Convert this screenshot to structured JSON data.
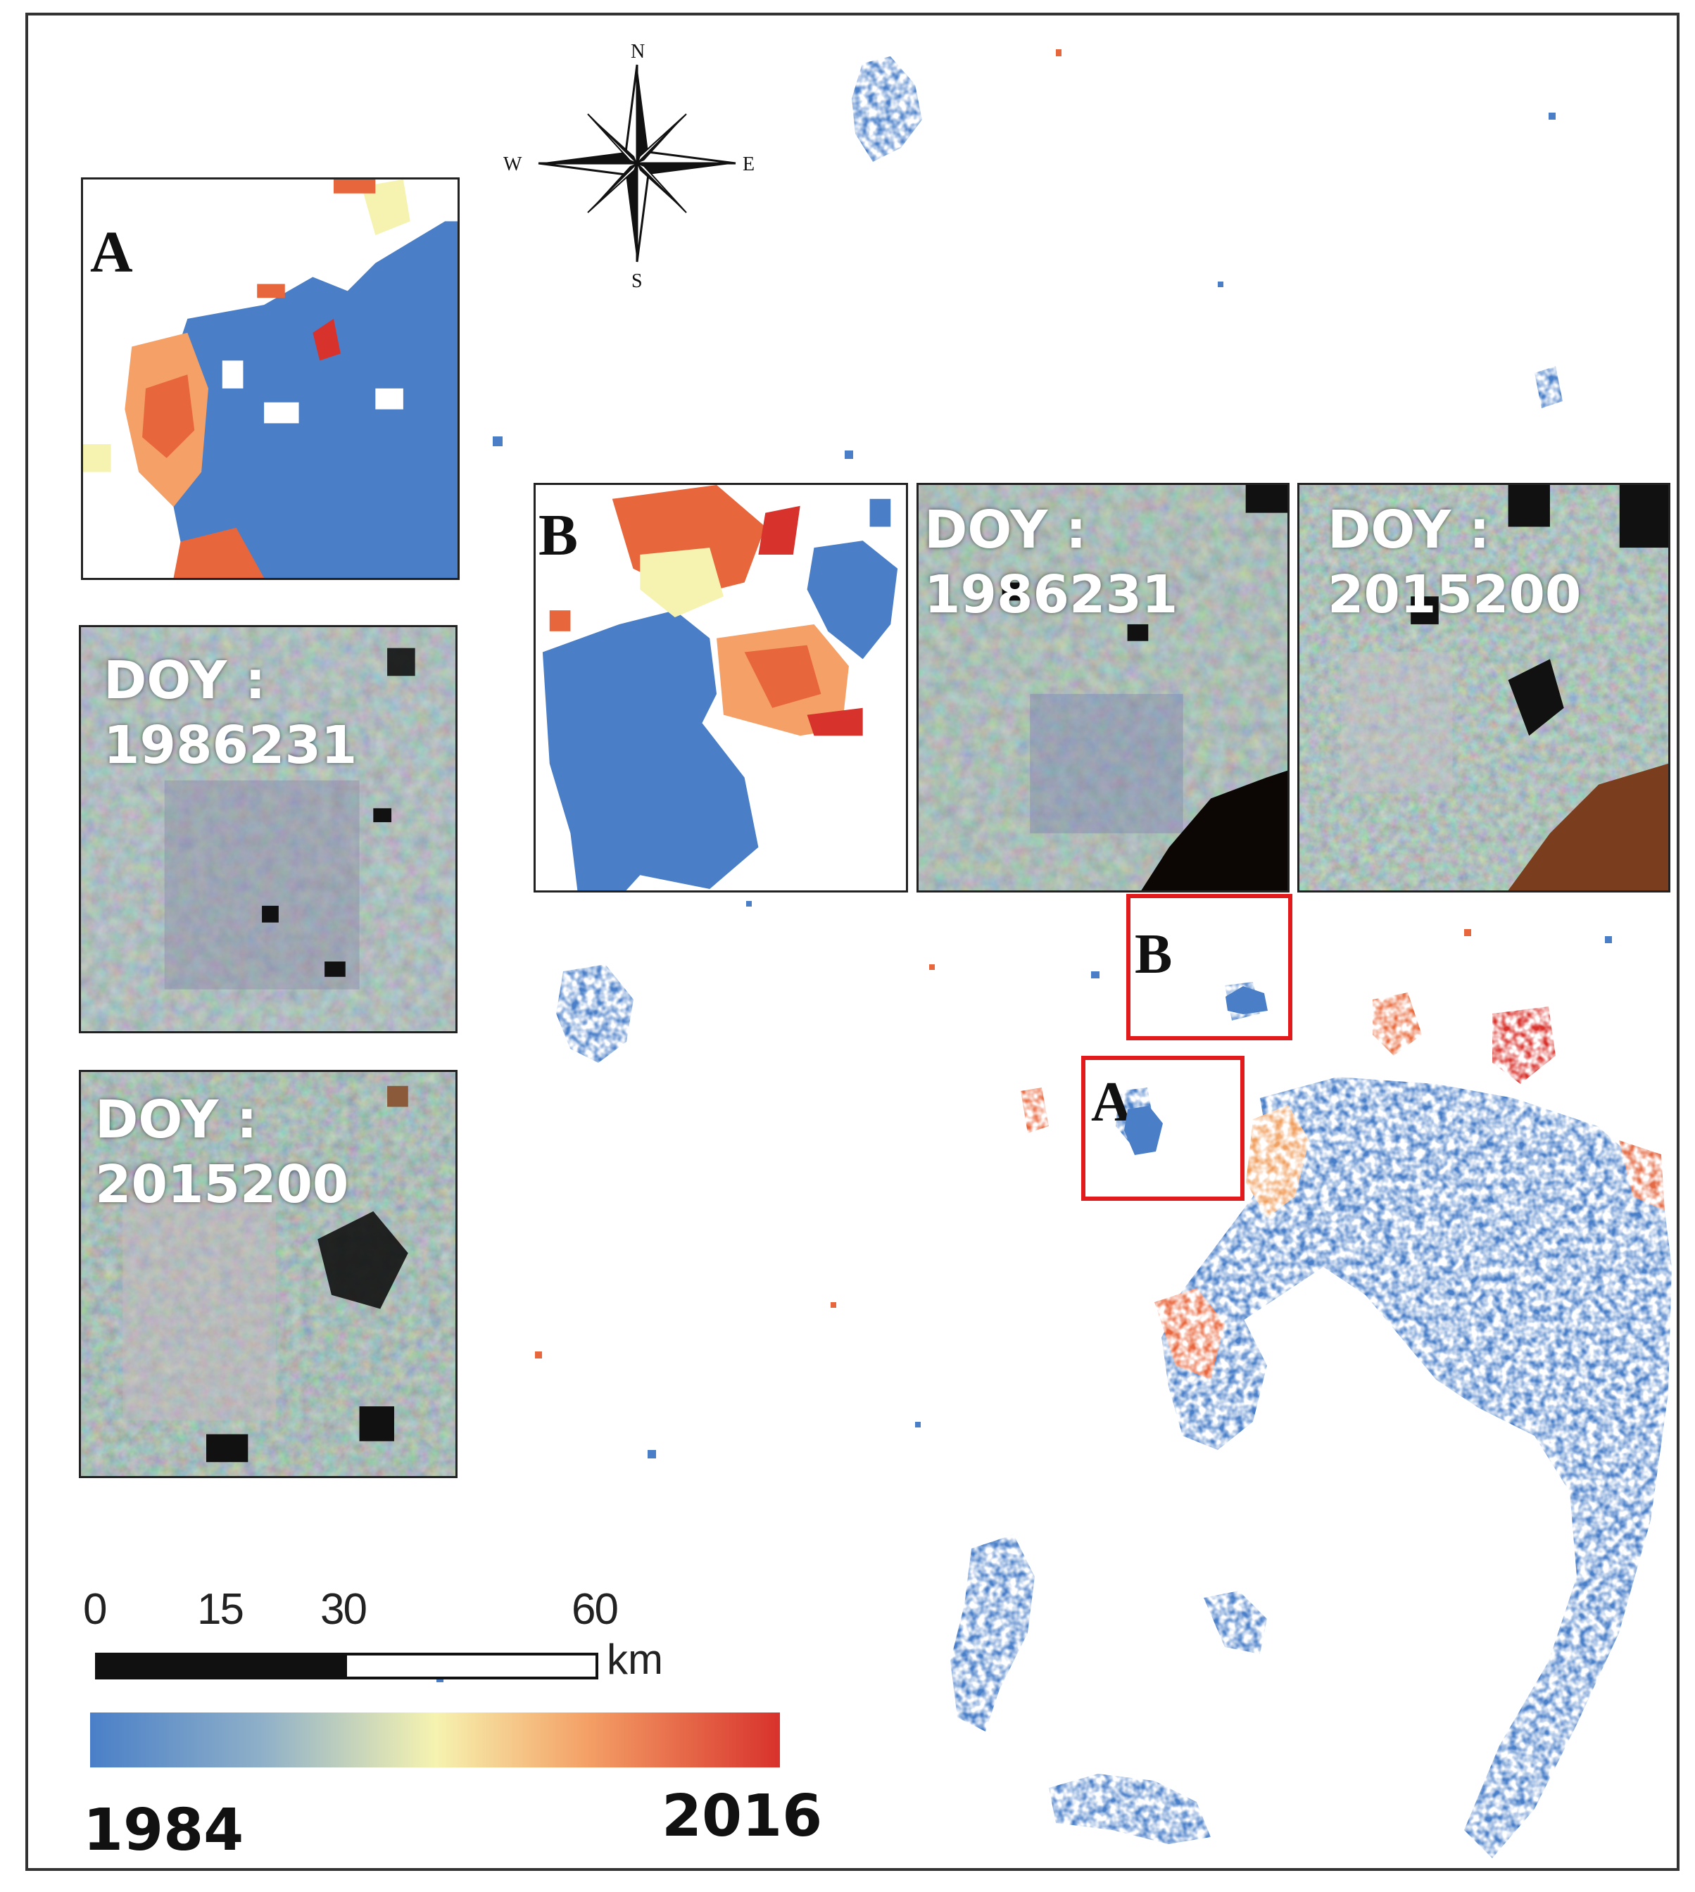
{
  "compass": {
    "north": "N",
    "south": "S",
    "east": "E",
    "west": "W"
  },
  "insets": {
    "a_map": {
      "letter": "A"
    },
    "a_doy1": {
      "text": "DOY :\n1986231"
    },
    "a_doy2": {
      "text": "DOY :\n2015200"
    },
    "b_map": {
      "letter": "B"
    },
    "b_doy1": {
      "text": "DOY :\n1986231"
    },
    "b_doy2": {
      "text": "DOY :\n2015200"
    }
  },
  "boxes": {
    "a": "A",
    "b": "B"
  },
  "scale_bar": {
    "ticks": [
      "0",
      "15",
      "30",
      "60"
    ],
    "unit": "km"
  },
  "legend": {
    "start": "1984",
    "end": "2016",
    "colors": [
      "#4a7fc8",
      "#f6f3b0",
      "#d8322c"
    ]
  },
  "colors": {
    "frame": "#333333",
    "highlight_box": "#e31a1c",
    "urban_old": "#4a7fc8",
    "urban_new": "#d8322c"
  }
}
